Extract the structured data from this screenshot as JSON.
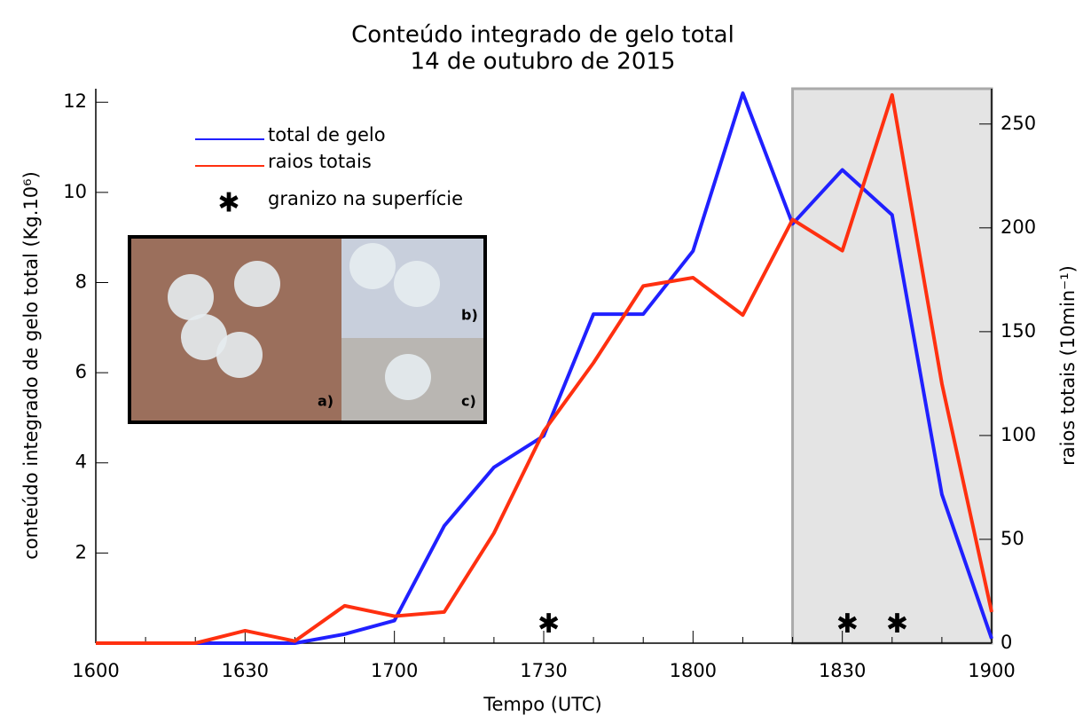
{
  "chart_data": {
    "type": "line",
    "title": "Conteúdo integrado de gelo total",
    "subtitle": "14 de outubro de 2015",
    "x_label": "Tempo (UTC)",
    "y_label": "conteúdo integrado de gelo total (Kg.10⁶)",
    "y2_label": "raios totais (10min⁻¹)",
    "categories": [
      "1600",
      null,
      null,
      "1630",
      null,
      null,
      "1700",
      null,
      null,
      "1730",
      null,
      null,
      "1800",
      null,
      null,
      "1830",
      null,
      null,
      "1900"
    ],
    "ylim": [
      0,
      12.3
    ],
    "yticks": [
      2,
      4,
      6,
      8,
      10,
      12
    ],
    "y2lim": [
      0,
      267
    ],
    "y2ticks": [
      0,
      50,
      100,
      150,
      200,
      250
    ],
    "series": [
      {
        "name": "total de gelo",
        "color": "#2020ff",
        "values": [
          0,
          0,
          0,
          0,
          0,
          0.2,
          0.5,
          2.6,
          3.9,
          4.6,
          7.3,
          7.3,
          8.7,
          12.2,
          9.3,
          10.5,
          9.5,
          3.3,
          0.1
        ]
      },
      {
        "name": "raios totais",
        "color": "#ff3010",
        "axis": "y2",
        "values": [
          0,
          0,
          0,
          6,
          1,
          18,
          13,
          15,
          53,
          102,
          135,
          172,
          176,
          158,
          204,
          189,
          264,
          125,
          15
        ]
      }
    ],
    "markers": {
      "name": "granizo na superfície",
      "symbol": "✱",
      "color": "#000000",
      "x": [
        9.1,
        15.1,
        16.1
      ],
      "values": [
        0.4,
        0.4,
        0.4
      ]
    },
    "highlight": {
      "from": 14,
      "to": 18,
      "color": "#e4e4e4",
      "border": "#aaaaaa"
    },
    "inset_labels": [
      "a)",
      "b)",
      "c)"
    ]
  }
}
